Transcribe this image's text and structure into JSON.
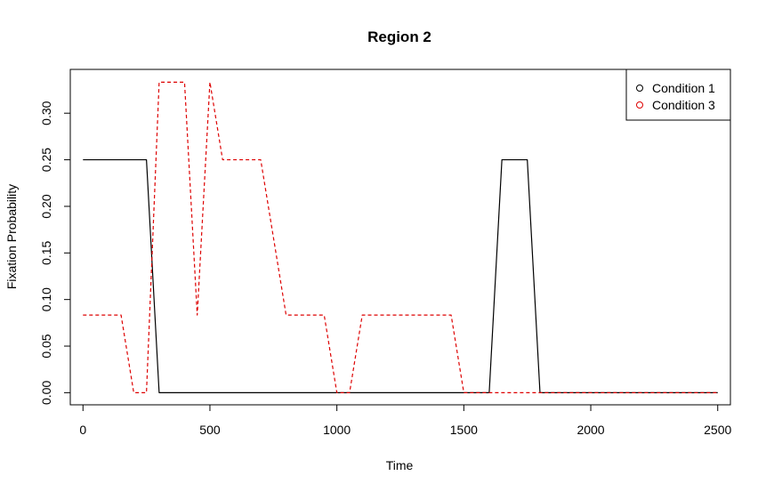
{
  "chart_data": {
    "type": "line",
    "title": "Region 2",
    "xlabel": "Time",
    "ylabel": "Fixation Probability",
    "xlim": [
      -50,
      2550
    ],
    "ylim": [
      -0.013,
      0.347
    ],
    "x_ticks": [
      0,
      500,
      1000,
      1500,
      2000,
      2500
    ],
    "y_ticks": [
      0.0,
      0.05,
      0.1,
      0.15,
      0.2,
      0.25,
      0.3
    ],
    "y_tick_labels": [
      "0.00",
      "0.05",
      "0.10",
      "0.15",
      "0.20",
      "0.25",
      "0.30"
    ],
    "grid": false,
    "legend_position": "top-right",
    "series": [
      {
        "name": "Condition 1",
        "color": "#000000",
        "line_style": "solid",
        "x": [
          0,
          50,
          100,
          150,
          200,
          250,
          300,
          350,
          400,
          450,
          500,
          550,
          600,
          650,
          700,
          750,
          800,
          850,
          900,
          950,
          1000,
          1050,
          1100,
          1150,
          1200,
          1250,
          1300,
          1350,
          1400,
          1450,
          1500,
          1550,
          1600,
          1650,
          1700,
          1750,
          1800,
          1850,
          1900,
          1950,
          2000,
          2050,
          2100,
          2150,
          2200,
          2250,
          2300,
          2350,
          2400,
          2450,
          2500
        ],
        "values": [
          0.25,
          0.25,
          0.25,
          0.25,
          0.25,
          0.25,
          0,
          0,
          0,
          0,
          0,
          0,
          0,
          0,
          0,
          0,
          0,
          0,
          0,
          0,
          0,
          0,
          0,
          0,
          0,
          0,
          0,
          0,
          0,
          0,
          0,
          0,
          0,
          0.25,
          0.25,
          0.25,
          0,
          0,
          0,
          0,
          0,
          0,
          0,
          0,
          0,
          0,
          0,
          0,
          0,
          0,
          0
        ]
      },
      {
        "name": "Condition 3",
        "color": "#dd0000",
        "line_style": "dashed",
        "x": [
          0,
          50,
          100,
          150,
          200,
          250,
          300,
          350,
          400,
          450,
          500,
          550,
          600,
          650,
          700,
          750,
          800,
          850,
          900,
          950,
          1000,
          1050,
          1100,
          1150,
          1200,
          1250,
          1300,
          1350,
          1400,
          1450,
          1500,
          1550,
          1600,
          1650,
          1700,
          1750,
          1800,
          1850,
          1900,
          1950,
          2000,
          2050,
          2100,
          2150,
          2200,
          2250,
          2300,
          2350,
          2400,
          2450,
          2500
        ],
        "values": [
          0.0833,
          0.0833,
          0.0833,
          0.0833,
          0,
          0,
          0.3333,
          0.3333,
          0.3333,
          0.0833,
          0.3333,
          0.25,
          0.25,
          0.25,
          0.25,
          0.1667,
          0.0833,
          0.0833,
          0.0833,
          0.0833,
          0,
          0,
          0.0833,
          0.0833,
          0.0833,
          0.0833,
          0.0833,
          0.0833,
          0.0833,
          0.0833,
          0,
          0,
          0,
          0,
          0,
          0,
          0,
          0,
          0,
          0,
          0,
          0,
          0,
          0,
          0,
          0,
          0,
          0,
          0,
          0,
          0
        ]
      }
    ]
  }
}
